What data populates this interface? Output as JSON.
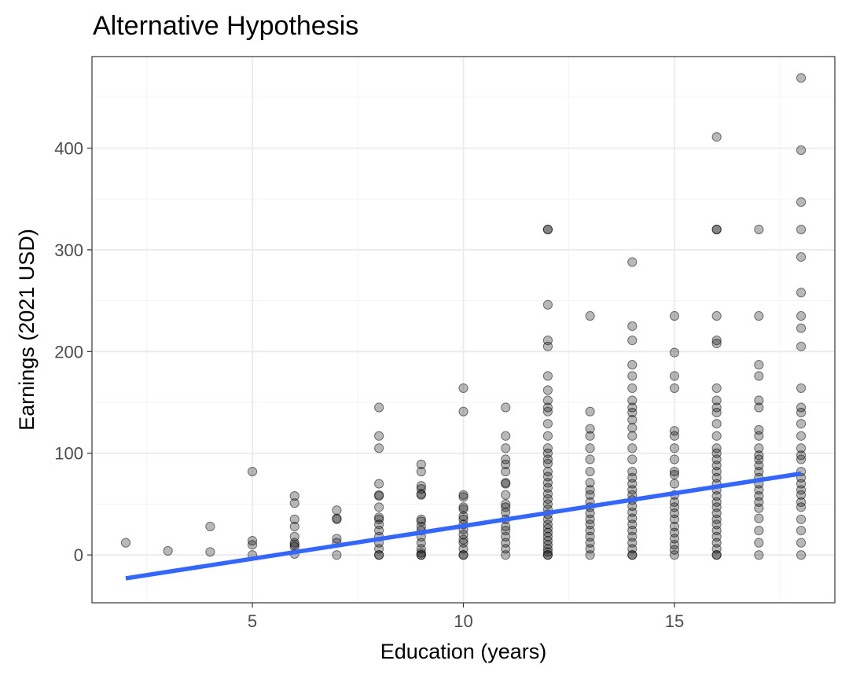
{
  "chart_data": {
    "type": "scatter",
    "title": "Alternative Hypothesis",
    "xlabel": "Education (years)",
    "ylabel": "Earnings (2021 USD)",
    "xlim": [
      1.2,
      18.8
    ],
    "ylim": [
      -47,
      490
    ],
    "x_ticks": [
      5,
      10,
      15
    ],
    "y_ticks": [
      0,
      100,
      200,
      300,
      400
    ],
    "grid": true,
    "legend": "none",
    "colors": {
      "points": "#000000",
      "fit_line": "#3366FF"
    },
    "points_alpha": 0.28,
    "points": [
      [
        2,
        12
      ],
      [
        3,
        4
      ],
      [
        4,
        28
      ],
      [
        4,
        3
      ],
      [
        5,
        82
      ],
      [
        5,
        14
      ],
      [
        5,
        10
      ],
      [
        5,
        0
      ],
      [
        6,
        58
      ],
      [
        6,
        51
      ],
      [
        6,
        35
      ],
      [
        6,
        28
      ],
      [
        6,
        18
      ],
      [
        6,
        12
      ],
      [
        6,
        10
      ],
      [
        6,
        8
      ],
      [
        6,
        1
      ],
      [
        7,
        44
      ],
      [
        7,
        36
      ],
      [
        7,
        35
      ],
      [
        7,
        16
      ],
      [
        7,
        12
      ],
      [
        7,
        0
      ],
      [
        8,
        145
      ],
      [
        8,
        117
      ],
      [
        8,
        105
      ],
      [
        8,
        70
      ],
      [
        8,
        59
      ],
      [
        8,
        58
      ],
      [
        8,
        47
      ],
      [
        8,
        37
      ],
      [
        8,
        35
      ],
      [
        8,
        30
      ],
      [
        8,
        24
      ],
      [
        8,
        18
      ],
      [
        8,
        12
      ],
      [
        8,
        6
      ],
      [
        8,
        0
      ],
      [
        8,
        0
      ],
      [
        9,
        89
      ],
      [
        9,
        82
      ],
      [
        9,
        68
      ],
      [
        9,
        65
      ],
      [
        9,
        60
      ],
      [
        9,
        59
      ],
      [
        9,
        35
      ],
      [
        9,
        33
      ],
      [
        9,
        28
      ],
      [
        9,
        24
      ],
      [
        9,
        18
      ],
      [
        9,
        12
      ],
      [
        9,
        6
      ],
      [
        9,
        2
      ],
      [
        9,
        0
      ],
      [
        9,
        0
      ],
      [
        10,
        164
      ],
      [
        10,
        141
      ],
      [
        10,
        59
      ],
      [
        10,
        57
      ],
      [
        10,
        47
      ],
      [
        10,
        45
      ],
      [
        10,
        38
      ],
      [
        10,
        35
      ],
      [
        10,
        30
      ],
      [
        10,
        25
      ],
      [
        10,
        20
      ],
      [
        10,
        15
      ],
      [
        10,
        12
      ],
      [
        10,
        6
      ],
      [
        10,
        0
      ],
      [
        10,
        0
      ],
      [
        11,
        145
      ],
      [
        11,
        117
      ],
      [
        11,
        105
      ],
      [
        11,
        94
      ],
      [
        11,
        89
      ],
      [
        11,
        82
      ],
      [
        11,
        71
      ],
      [
        11,
        70
      ],
      [
        11,
        59
      ],
      [
        11,
        50
      ],
      [
        11,
        47
      ],
      [
        11,
        42
      ],
      [
        11,
        35
      ],
      [
        11,
        28
      ],
      [
        11,
        24
      ],
      [
        11,
        18
      ],
      [
        11,
        12
      ],
      [
        11,
        6
      ],
      [
        11,
        0
      ],
      [
        12,
        320
      ],
      [
        12,
        320
      ],
      [
        12,
        246
      ],
      [
        12,
        211
      ],
      [
        12,
        205
      ],
      [
        12,
        176
      ],
      [
        12,
        162
      ],
      [
        12,
        152
      ],
      [
        12,
        145
      ],
      [
        12,
        141
      ],
      [
        12,
        129
      ],
      [
        12,
        117
      ],
      [
        12,
        105
      ],
      [
        12,
        100
      ],
      [
        12,
        94
      ],
      [
        12,
        90
      ],
      [
        12,
        82
      ],
      [
        12,
        77
      ],
      [
        12,
        71
      ],
      [
        12,
        66
      ],
      [
        12,
        60
      ],
      [
        12,
        55
      ],
      [
        12,
        50
      ],
      [
        12,
        45
      ],
      [
        12,
        40
      ],
      [
        12,
        35
      ],
      [
        12,
        30
      ],
      [
        12,
        26
      ],
      [
        12,
        22
      ],
      [
        12,
        18
      ],
      [
        12,
        14
      ],
      [
        12,
        10
      ],
      [
        12,
        6
      ],
      [
        12,
        3
      ],
      [
        12,
        0
      ],
      [
        12,
        0
      ],
      [
        13,
        235
      ],
      [
        13,
        141
      ],
      [
        13,
        124
      ],
      [
        13,
        117
      ],
      [
        13,
        105
      ],
      [
        13,
        94
      ],
      [
        13,
        82
      ],
      [
        13,
        71
      ],
      [
        13,
        64
      ],
      [
        13,
        59
      ],
      [
        13,
        52
      ],
      [
        13,
        47
      ],
      [
        13,
        41
      ],
      [
        13,
        35
      ],
      [
        13,
        30
      ],
      [
        13,
        24
      ],
      [
        13,
        18
      ],
      [
        13,
        12
      ],
      [
        13,
        6
      ],
      [
        13,
        0
      ],
      [
        14,
        288
      ],
      [
        14,
        225
      ],
      [
        14,
        211
      ],
      [
        14,
        187
      ],
      [
        14,
        176
      ],
      [
        14,
        164
      ],
      [
        14,
        152
      ],
      [
        14,
        145
      ],
      [
        14,
        140
      ],
      [
        14,
        133
      ],
      [
        14,
        125
      ],
      [
        14,
        117
      ],
      [
        14,
        105
      ],
      [
        14,
        94
      ],
      [
        14,
        82
      ],
      [
        14,
        76
      ],
      [
        14,
        70
      ],
      [
        14,
        64
      ],
      [
        14,
        59
      ],
      [
        14,
        54
      ],
      [
        14,
        48
      ],
      [
        14,
        42
      ],
      [
        14,
        36
      ],
      [
        14,
        30
      ],
      [
        14,
        24
      ],
      [
        14,
        18
      ],
      [
        14,
        12
      ],
      [
        14,
        6
      ],
      [
        14,
        0
      ],
      [
        14,
        0
      ],
      [
        15,
        235
      ],
      [
        15,
        199
      ],
      [
        15,
        176
      ],
      [
        15,
        164
      ],
      [
        15,
        122
      ],
      [
        15,
        117
      ],
      [
        15,
        105
      ],
      [
        15,
        94
      ],
      [
        15,
        82
      ],
      [
        15,
        79
      ],
      [
        15,
        70
      ],
      [
        15,
        59
      ],
      [
        15,
        52
      ],
      [
        15,
        47
      ],
      [
        15,
        41
      ],
      [
        15,
        35
      ],
      [
        15,
        28
      ],
      [
        15,
        22
      ],
      [
        15,
        16
      ],
      [
        15,
        10
      ],
      [
        15,
        5
      ],
      [
        15,
        0
      ],
      [
        16,
        411
      ],
      [
        16,
        320
      ],
      [
        16,
        320
      ],
      [
        16,
        235
      ],
      [
        16,
        211
      ],
      [
        16,
        208
      ],
      [
        16,
        164
      ],
      [
        16,
        152
      ],
      [
        16,
        145
      ],
      [
        16,
        140
      ],
      [
        16,
        129
      ],
      [
        16,
        117
      ],
      [
        16,
        105
      ],
      [
        16,
        100
      ],
      [
        16,
        94
      ],
      [
        16,
        88
      ],
      [
        16,
        82
      ],
      [
        16,
        76
      ],
      [
        16,
        70
      ],
      [
        16,
        64
      ],
      [
        16,
        58
      ],
      [
        16,
        52
      ],
      [
        16,
        47
      ],
      [
        16,
        41
      ],
      [
        16,
        35
      ],
      [
        16,
        30
      ],
      [
        16,
        24
      ],
      [
        16,
        18
      ],
      [
        16,
        12
      ],
      [
        16,
        6
      ],
      [
        16,
        0
      ],
      [
        16,
        0
      ],
      [
        17,
        320
      ],
      [
        17,
        235
      ],
      [
        17,
        187
      ],
      [
        17,
        176
      ],
      [
        17,
        152
      ],
      [
        17,
        145
      ],
      [
        17,
        123
      ],
      [
        17,
        117
      ],
      [
        17,
        105
      ],
      [
        17,
        98
      ],
      [
        17,
        94
      ],
      [
        17,
        88
      ],
      [
        17,
        82
      ],
      [
        17,
        76
      ],
      [
        17,
        70
      ],
      [
        17,
        64
      ],
      [
        17,
        58
      ],
      [
        17,
        52
      ],
      [
        17,
        46
      ],
      [
        17,
        36
      ],
      [
        17,
        24
      ],
      [
        17,
        12
      ],
      [
        17,
        0
      ],
      [
        18,
        469
      ],
      [
        18,
        398
      ],
      [
        18,
        347
      ],
      [
        18,
        320
      ],
      [
        18,
        293
      ],
      [
        18,
        258
      ],
      [
        18,
        235
      ],
      [
        18,
        223
      ],
      [
        18,
        205
      ],
      [
        18,
        164
      ],
      [
        18,
        145
      ],
      [
        18,
        140
      ],
      [
        18,
        129
      ],
      [
        18,
        117
      ],
      [
        18,
        105
      ],
      [
        18,
        98
      ],
      [
        18,
        94
      ],
      [
        18,
        82
      ],
      [
        18,
        76
      ],
      [
        18,
        70
      ],
      [
        18,
        64
      ],
      [
        18,
        59
      ],
      [
        18,
        52
      ],
      [
        18,
        47
      ],
      [
        18,
        35
      ],
      [
        18,
        24
      ],
      [
        18,
        12
      ],
      [
        18,
        0
      ]
    ],
    "fit_line": {
      "x": [
        2,
        18
      ],
      "y": [
        -23,
        80
      ]
    }
  }
}
